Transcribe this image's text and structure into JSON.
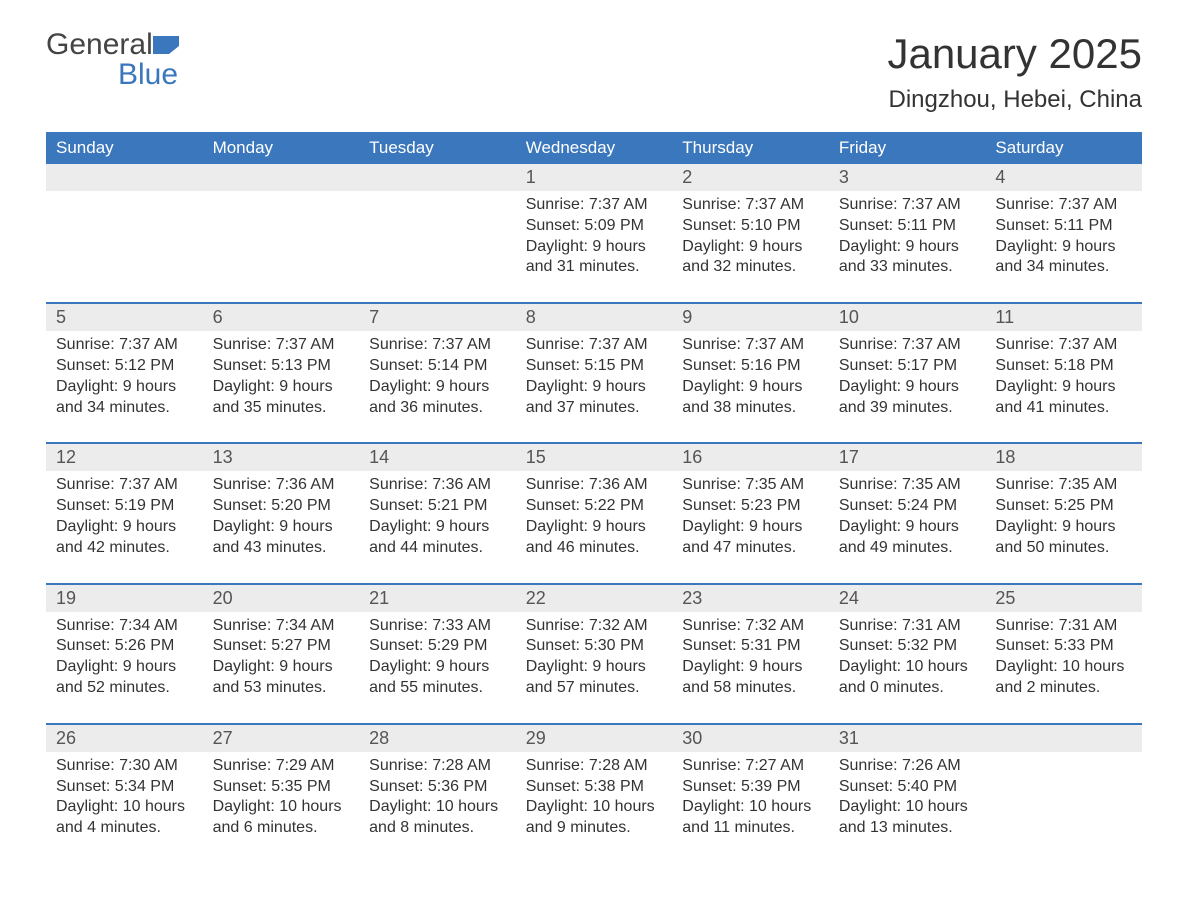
{
  "brand": {
    "general": "General",
    "blue": "Blue"
  },
  "title": "January 2025",
  "location": "Dingzhou, Hebei, China",
  "colors": {
    "header_bg": "#3b77bc",
    "header_fg": "#ffffff",
    "strip_bg": "#ececec",
    "text": "#333333",
    "rule": "#3b77bc",
    "page_bg": "#ffffff"
  },
  "typography": {
    "title_fontsize": 42,
    "location_fontsize": 24,
    "weekday_fontsize": 17,
    "daynum_fontsize": 18,
    "body_fontsize": 16
  },
  "weekdays": [
    "Sunday",
    "Monday",
    "Tuesday",
    "Wednesday",
    "Thursday",
    "Friday",
    "Saturday"
  ],
  "weeks": [
    [
      null,
      null,
      null,
      {
        "n": "1",
        "sunrise": "7:37 AM",
        "sunset": "5:09 PM",
        "dl": "9 hours and 31 minutes."
      },
      {
        "n": "2",
        "sunrise": "7:37 AM",
        "sunset": "5:10 PM",
        "dl": "9 hours and 32 minutes."
      },
      {
        "n": "3",
        "sunrise": "7:37 AM",
        "sunset": "5:11 PM",
        "dl": "9 hours and 33 minutes."
      },
      {
        "n": "4",
        "sunrise": "7:37 AM",
        "sunset": "5:11 PM",
        "dl": "9 hours and 34 minutes."
      }
    ],
    [
      {
        "n": "5",
        "sunrise": "7:37 AM",
        "sunset": "5:12 PM",
        "dl": "9 hours and 34 minutes."
      },
      {
        "n": "6",
        "sunrise": "7:37 AM",
        "sunset": "5:13 PM",
        "dl": "9 hours and 35 minutes."
      },
      {
        "n": "7",
        "sunrise": "7:37 AM",
        "sunset": "5:14 PM",
        "dl": "9 hours and 36 minutes."
      },
      {
        "n": "8",
        "sunrise": "7:37 AM",
        "sunset": "5:15 PM",
        "dl": "9 hours and 37 minutes."
      },
      {
        "n": "9",
        "sunrise": "7:37 AM",
        "sunset": "5:16 PM",
        "dl": "9 hours and 38 minutes."
      },
      {
        "n": "10",
        "sunrise": "7:37 AM",
        "sunset": "5:17 PM",
        "dl": "9 hours and 39 minutes."
      },
      {
        "n": "11",
        "sunrise": "7:37 AM",
        "sunset": "5:18 PM",
        "dl": "9 hours and 41 minutes."
      }
    ],
    [
      {
        "n": "12",
        "sunrise": "7:37 AM",
        "sunset": "5:19 PM",
        "dl": "9 hours and 42 minutes."
      },
      {
        "n": "13",
        "sunrise": "7:36 AM",
        "sunset": "5:20 PM",
        "dl": "9 hours and 43 minutes."
      },
      {
        "n": "14",
        "sunrise": "7:36 AM",
        "sunset": "5:21 PM",
        "dl": "9 hours and 44 minutes."
      },
      {
        "n": "15",
        "sunrise": "7:36 AM",
        "sunset": "5:22 PM",
        "dl": "9 hours and 46 minutes."
      },
      {
        "n": "16",
        "sunrise": "7:35 AM",
        "sunset": "5:23 PM",
        "dl": "9 hours and 47 minutes."
      },
      {
        "n": "17",
        "sunrise": "7:35 AM",
        "sunset": "5:24 PM",
        "dl": "9 hours and 49 minutes."
      },
      {
        "n": "18",
        "sunrise": "7:35 AM",
        "sunset": "5:25 PM",
        "dl": "9 hours and 50 minutes."
      }
    ],
    [
      {
        "n": "19",
        "sunrise": "7:34 AM",
        "sunset": "5:26 PM",
        "dl": "9 hours and 52 minutes."
      },
      {
        "n": "20",
        "sunrise": "7:34 AM",
        "sunset": "5:27 PM",
        "dl": "9 hours and 53 minutes."
      },
      {
        "n": "21",
        "sunrise": "7:33 AM",
        "sunset": "5:29 PM",
        "dl": "9 hours and 55 minutes."
      },
      {
        "n": "22",
        "sunrise": "7:32 AM",
        "sunset": "5:30 PM",
        "dl": "9 hours and 57 minutes."
      },
      {
        "n": "23",
        "sunrise": "7:32 AM",
        "sunset": "5:31 PM",
        "dl": "9 hours and 58 minutes."
      },
      {
        "n": "24",
        "sunrise": "7:31 AM",
        "sunset": "5:32 PM",
        "dl": "10 hours and 0 minutes."
      },
      {
        "n": "25",
        "sunrise": "7:31 AM",
        "sunset": "5:33 PM",
        "dl": "10 hours and 2 minutes."
      }
    ],
    [
      {
        "n": "26",
        "sunrise": "7:30 AM",
        "sunset": "5:34 PM",
        "dl": "10 hours and 4 minutes."
      },
      {
        "n": "27",
        "sunrise": "7:29 AM",
        "sunset": "5:35 PM",
        "dl": "10 hours and 6 minutes."
      },
      {
        "n": "28",
        "sunrise": "7:28 AM",
        "sunset": "5:36 PM",
        "dl": "10 hours and 8 minutes."
      },
      {
        "n": "29",
        "sunrise": "7:28 AM",
        "sunset": "5:38 PM",
        "dl": "10 hours and 9 minutes."
      },
      {
        "n": "30",
        "sunrise": "7:27 AM",
        "sunset": "5:39 PM",
        "dl": "10 hours and 11 minutes."
      },
      {
        "n": "31",
        "sunrise": "7:26 AM",
        "sunset": "5:40 PM",
        "dl": "10 hours and 13 minutes."
      },
      null
    ]
  ],
  "labels": {
    "sunrise": "Sunrise:",
    "sunset": "Sunset:",
    "daylight": "Daylight:"
  }
}
